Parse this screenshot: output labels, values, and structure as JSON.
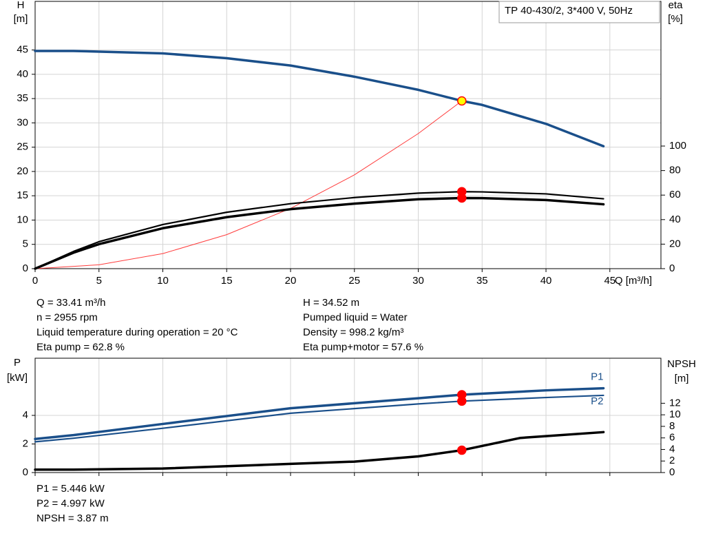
{
  "chart_data": [
    {
      "type": "line",
      "title": "TP 40-430/2, 3*400 V, 50Hz",
      "y_label": [
        "H",
        "[m]"
      ],
      "y2_label": [
        "eta",
        "[%]"
      ],
      "x_label": "Q [m³/h]",
      "xlim": [
        0,
        49
      ],
      "xticks": [
        0,
        5,
        10,
        15,
        20,
        25,
        30,
        35,
        40,
        45
      ],
      "ylim": [
        0,
        55
      ],
      "yticks": [
        0,
        5,
        10,
        15,
        20,
        25,
        30,
        35,
        40,
        45
      ],
      "y2lim": [
        0,
        218
      ],
      "y2ticks": [
        0,
        20,
        40,
        60,
        80,
        100
      ],
      "grid": true,
      "x_tick_labels": true,
      "series": [
        {
          "color": "#1a4f8a",
          "line": "thick",
          "x": [
            0,
            3,
            10,
            15,
            20,
            25,
            30,
            33.41,
            35,
            40,
            44.5
          ],
          "values": [
            44.8,
            44.8,
            44.3,
            43.3,
            41.8,
            39.5,
            36.8,
            34.52,
            33.7,
            29.8,
            25.2
          ]
        },
        {
          "color": "#ff3b3b",
          "line": "thin",
          "x": [
            0,
            5,
            10,
            15,
            20,
            25,
            30,
            33.41
          ],
          "values": [
            0,
            0.8,
            3.1,
            7,
            12.4,
            19.3,
            27.8,
            34.52
          ]
        },
        {
          "color": "#000000",
          "line": "medium",
          "axis": "y2",
          "x": [
            0,
            3,
            5,
            10,
            15,
            20,
            25,
            30,
            33.41,
            35,
            40,
            44.5
          ],
          "values": [
            0,
            14,
            22,
            36,
            46,
            53,
            58,
            61.6,
            62.8,
            62.6,
            61,
            57
          ]
        },
        {
          "color": "#000000",
          "line": "thick",
          "axis": "y2",
          "x": [
            0,
            3,
            5,
            10,
            15,
            20,
            25,
            30,
            33.41,
            35,
            40,
            44.5
          ],
          "values": [
            0,
            13,
            20,
            33,
            42,
            48.5,
            53,
            56.6,
            57.6,
            57.5,
            56,
            52.5
          ]
        }
      ],
      "markers": [
        {
          "x": 33.41,
          "y": 34.52,
          "color": "#ffff00"
        },
        {
          "x": 33.41,
          "y": 62.8,
          "axis": "y2",
          "color": "#ff0000"
        },
        {
          "x": 33.41,
          "y": 57.6,
          "axis": "y2",
          "color": "#ff0000"
        }
      ],
      "info": [
        [
          "Q = 33.41 m³/h",
          "n = 2955 rpm",
          "Liquid temperature during operation = 20 °C",
          "Eta pump = 62.8 %"
        ],
        [
          "H = 34.52 m",
          "Pumped liquid = Water",
          "Density = 998.2 kg/m³",
          "Eta pump+motor = 57.6 %"
        ]
      ]
    },
    {
      "type": "line",
      "y_label": [
        "P",
        "[kW]"
      ],
      "y2_label": [
        "NPSH",
        "[m]"
      ],
      "xlim": [
        0,
        49
      ],
      "xticks": [
        0,
        5,
        10,
        15,
        20,
        25,
        30,
        35,
        40,
        45
      ],
      "ylim": [
        0,
        8
      ],
      "yticks": [
        0,
        2,
        4
      ],
      "y2lim": [
        0,
        19.8
      ],
      "y2ticks": [
        0,
        2,
        4,
        6,
        8,
        10,
        12
      ],
      "grid": true,
      "x_tick_labels": false,
      "series": [
        {
          "name": "P1",
          "color": "#1a4f8a",
          "line": "thick",
          "x": [
            0,
            3,
            10,
            20,
            30,
            33.41,
            40,
            44.5
          ],
          "values": [
            2.35,
            2.62,
            3.4,
            4.5,
            5.2,
            5.446,
            5.75,
            5.9
          ]
        },
        {
          "name": "P2",
          "color": "#1a4f8a",
          "line": "medium",
          "x": [
            0,
            3,
            10,
            20,
            30,
            33.41,
            40,
            44.5
          ],
          "values": [
            2.15,
            2.4,
            3.1,
            4.15,
            4.8,
            4.997,
            5.25,
            5.4
          ]
        },
        {
          "color": "#000000",
          "line": "thick",
          "axis": "y2",
          "x": [
            0,
            3,
            10,
            20,
            25,
            30,
            33.41,
            38,
            44.5
          ],
          "values": [
            0.5,
            0.5,
            0.7,
            1.5,
            1.9,
            2.8,
            3.87,
            6.0,
            7.0
          ]
        }
      ],
      "markers": [
        {
          "x": 33.41,
          "y": 5.446,
          "color": "#ff0000"
        },
        {
          "x": 33.41,
          "y": 4.997,
          "color": "#ff0000"
        },
        {
          "x": 33.41,
          "y": 3.87,
          "axis": "y2",
          "color": "#ff0000"
        }
      ],
      "info": [
        [
          "P1 = 5.446 kW",
          "P2 = 4.997 kW",
          "NPSH = 3.87 m"
        ]
      ]
    }
  ]
}
